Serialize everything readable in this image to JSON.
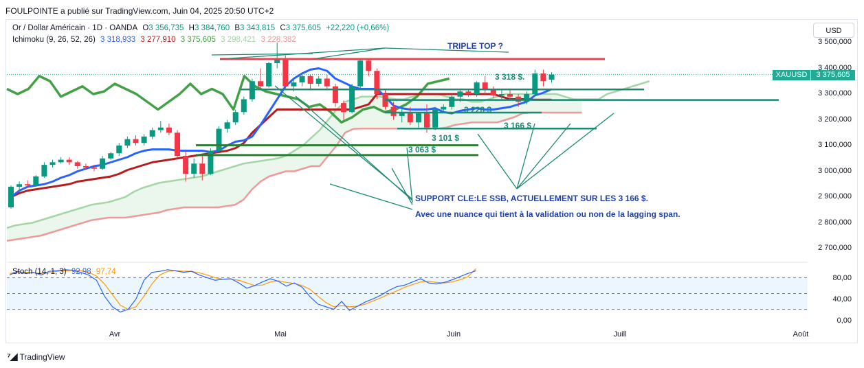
{
  "header": {
    "publisher_line": "FOULPOINTE a publié sur TradingView.com, Juin 04, 2025 20:50 UTC+2"
  },
  "instrument": {
    "name": "Or / Dollar Américain · 1D · OANDA",
    "o_label": "O",
    "o_value": "3 356,735",
    "h_label": "H",
    "h_value": "3 384,760",
    "b_label": "B",
    "b_value": "3 343,815",
    "c_label": "C",
    "c_value": "3 375,605",
    "change": "+22,220 (+0,66%)"
  },
  "ichimoku": {
    "label": "Ichimoku (9, 26, 52, 26)",
    "v1": "3 318,933",
    "v2": "3 277,910",
    "v3": "3 375,605",
    "v4": "3 298,421",
    "v5": "3 228,382",
    "colors": {
      "tenkan": "#2962ff",
      "kijun": "#b71c1c",
      "lagging": "#43a047",
      "span_a": "#a5d6a7",
      "span_b": "#ef9a9a"
    }
  },
  "stoch": {
    "label": "Stoch (14, 1, 3)",
    "k": "92,98",
    "d": "97,74",
    "levels": [
      "80,00",
      "40,00",
      "0,00"
    ]
  },
  "currency_button": "USD",
  "price_tag": {
    "symbol": "XAUUSD",
    "price": "3 375,605"
  },
  "annotations": {
    "triple_top": "TRIPLE TOP ?",
    "l3318": "3 318 $.",
    "l3228": "3 228 $",
    "l3166": "3 166 $",
    "l3101": "3 101 $",
    "l3063": "3 063 $",
    "support1": "SUPPORT CLE:LE SSB, ACTUELLEMENT SUR LES 3 166 $.",
    "support2": "Avec une nuance qui tient à la validation ou non de la lagging span."
  },
  "footer": {
    "brand": "TradingView"
  },
  "chart_data": {
    "type": "candlestick",
    "x_ticks": [
      "Avr",
      "Mai",
      "Juin",
      "Juill",
      "Août"
    ],
    "y_ticks": [
      "3 500,000",
      "3 400,000",
      "3 300,000",
      "3 200,000",
      "3 100,000",
      "3 000,000",
      "2 900,000",
      "2 800,000",
      "2 700,000"
    ],
    "y_values": [
      3500,
      3400,
      3300,
      3200,
      3100,
      3000,
      2900,
      2800,
      2700
    ],
    "ylim": [
      2650,
      3530
    ],
    "ohlc": [
      [
        2860,
        2945,
        2855,
        2940
      ],
      [
        2940,
        2960,
        2925,
        2950
      ],
      [
        2950,
        2965,
        2935,
        2945
      ],
      [
        2945,
        2985,
        2940,
        2980
      ],
      [
        2980,
        3035,
        2975,
        3025
      ],
      [
        3025,
        3045,
        3015,
        3035
      ],
      [
        3035,
        3055,
        3030,
        3045
      ],
      [
        3045,
        3055,
        3025,
        3035
      ],
      [
        3035,
        3040,
        3010,
        3020
      ],
      [
        3020,
        3030,
        3005,
        3015
      ],
      [
        3015,
        3025,
        3000,
        3010
      ],
      [
        3010,
        3060,
        3005,
        3050
      ],
      [
        3050,
        3075,
        3045,
        3070
      ],
      [
        3070,
        3110,
        3060,
        3100
      ],
      [
        3100,
        3135,
        3090,
        3125
      ],
      [
        3125,
        3140,
        3100,
        3110
      ],
      [
        3110,
        3145,
        3100,
        3135
      ],
      [
        3135,
        3170,
        3125,
        3160
      ],
      [
        3160,
        3195,
        3150,
        3170
      ],
      [
        3170,
        3185,
        3140,
        3150
      ],
      [
        3150,
        3160,
        3050,
        3060
      ],
      [
        3060,
        3080,
        2960,
        2990
      ],
      [
        2990,
        3050,
        2975,
        3030
      ],
      [
        3030,
        3060,
        2965,
        2990
      ],
      [
        2990,
        3090,
        2985,
        3080
      ],
      [
        3080,
        3175,
        3075,
        3165
      ],
      [
        3165,
        3200,
        3150,
        3190
      ],
      [
        3190,
        3240,
        3180,
        3230
      ],
      [
        3230,
        3290,
        3220,
        3280
      ],
      [
        3280,
        3360,
        3270,
        3350
      ],
      [
        3350,
        3400,
        3320,
        3330
      ],
      [
        3330,
        3425,
        3325,
        3420
      ],
      [
        3420,
        3500,
        3400,
        3440
      ],
      [
        3440,
        3450,
        3320,
        3330
      ],
      [
        3330,
        3360,
        3310,
        3345
      ],
      [
        3345,
        3380,
        3330,
        3370
      ],
      [
        3370,
        3375,
        3320,
        3340
      ],
      [
        3340,
        3370,
        3330,
        3360
      ],
      [
        3360,
        3375,
        3320,
        3330
      ],
      [
        3330,
        3340,
        3250,
        3265
      ],
      [
        3265,
        3275,
        3200,
        3230
      ],
      [
        3230,
        3340,
        3225,
        3330
      ],
      [
        3330,
        3440,
        3320,
        3430
      ],
      [
        3430,
        3435,
        3370,
        3390
      ],
      [
        3390,
        3400,
        3280,
        3300
      ],
      [
        3300,
        3320,
        3240,
        3250
      ],
      [
        3250,
        3270,
        3200,
        3215
      ],
      [
        3215,
        3245,
        3190,
        3230
      ],
      [
        3230,
        3250,
        3180,
        3190
      ],
      [
        3190,
        3230,
        3170,
        3225
      ],
      [
        3225,
        3260,
        3150,
        3170
      ],
      [
        3170,
        3250,
        3160,
        3240
      ],
      [
        3240,
        3260,
        3230,
        3250
      ],
      [
        3250,
        3300,
        3240,
        3290
      ],
      [
        3290,
        3320,
        3270,
        3310
      ],
      [
        3310,
        3320,
        3290,
        3300
      ],
      [
        3300,
        3350,
        3290,
        3345
      ],
      [
        3345,
        3370,
        3300,
        3315
      ],
      [
        3315,
        3330,
        3285,
        3295
      ],
      [
        3295,
        3320,
        3280,
        3300
      ],
      [
        3300,
        3320,
        3280,
        3290
      ],
      [
        3290,
        3300,
        3250,
        3270
      ],
      [
        3270,
        3310,
        3260,
        3300
      ],
      [
        3300,
        3395,
        3290,
        3380
      ],
      [
        3380,
        3395,
        3330,
        3350
      ],
      [
        3356,
        3385,
        3344,
        3376
      ]
    ],
    "tenkan": [
      2900,
      2925,
      2940,
      2945,
      2950,
      2960,
      2975,
      2985,
      3000,
      3010,
      3020,
      3025,
      3035,
      3045,
      3055,
      3070,
      3080,
      3085,
      3085,
      3085,
      3080,
      3080,
      3080,
      3080,
      3075,
      3080,
      3100,
      3115,
      3120,
      3135,
      3180,
      3230,
      3280,
      3330,
      3360,
      3380,
      3395,
      3400,
      3390,
      3360,
      3345,
      3330,
      3320,
      3320,
      3320,
      3290,
      3255,
      3245,
      3240,
      3240,
      3240,
      3245,
      3230,
      3225,
      3235,
      3240,
      3245,
      3240,
      3240,
      3245,
      3250,
      3260,
      3270,
      3295,
      3305,
      3319
    ],
    "kijun": [
      2900,
      2915,
      2925,
      2930,
      2935,
      2940,
      2945,
      2950,
      2960,
      2965,
      2970,
      2975,
      2980,
      2990,
      3005,
      3015,
      3025,
      3035,
      3040,
      3045,
      3050,
      3055,
      3060,
      3065,
      3070,
      3075,
      3080,
      3090,
      3110,
      3150,
      3180,
      3210,
      3240,
      3240,
      3240,
      3240,
      3240,
      3240,
      3240,
      3240,
      3240,
      3240,
      3250,
      3260,
      3300,
      3300,
      3300,
      3300,
      3300,
      3300,
      3300,
      3300,
      3300,
      3300,
      3300,
      3300,
      3300,
      3300,
      3300,
      3290,
      3280,
      3280,
      3280,
      3278,
      3278,
      3278
    ],
    "lagging": [
      3320,
      3300,
      3320,
      3370,
      3350,
      3290,
      3310,
      3330,
      3300,
      3310,
      3340,
      3320,
      3300,
      3270,
      3240,
      3270,
      3300,
      3340,
      3300,
      3320,
      3300,
      3240,
      3370,
      3330,
      3310,
      3300,
      3290,
      3280,
      3250,
      3260,
      3230,
      3190,
      3210,
      3240,
      3250,
      3230,
      3240,
      3260,
      3290,
      3340,
      3350,
      3360
    ],
    "lagging_offset": 0,
    "span_a": [
      2780,
      2790,
      2795,
      2800,
      2810,
      2820,
      2830,
      2840,
      2850,
      2860,
      2870,
      2875,
      2880,
      2890,
      2900,
      2920,
      2935,
      2945,
      2955,
      2960,
      2965,
      2970,
      2975,
      2980,
      2990,
      3000,
      3010,
      3020,
      3030,
      3035,
      3040,
      3045,
      3050,
      3060,
      3080,
      3100,
      3130,
      3160,
      3200,
      3240,
      3270,
      3280,
      3290,
      3290,
      3290,
      3285,
      3280,
      3280,
      3290,
      3300,
      3300,
      3300,
      3290,
      3280,
      3280,
      3270,
      3270,
      3280,
      3290,
      3300,
      3300,
      3300,
      3300,
      3300,
      3300,
      3300,
      3290,
      3280,
      3280,
      3280,
      3280,
      3300,
      3310,
      3320,
      3330,
      3340,
      3350
    ],
    "span_b": [
      2730,
      2735,
      2740,
      2745,
      2750,
      2760,
      2770,
      2780,
      2790,
      2800,
      2810,
      2815,
      2820,
      2820,
      2820,
      2825,
      2830,
      2835,
      2840,
      2850,
      2855,
      2860,
      2860,
      2860,
      2860,
      2860,
      2865,
      2870,
      2890,
      2930,
      2960,
      2980,
      2990,
      3000,
      3000,
      3010,
      3020,
      3020,
      3060,
      3100,
      3150,
      3165,
      3166,
      3166,
      3166,
      3166,
      3166,
      3166,
      3166,
      3166,
      3166,
      3166,
      3170,
      3180,
      3185,
      3190,
      3190,
      3190,
      3190,
      3200,
      3210,
      3225,
      3228,
      3228,
      3228,
      3228,
      3228,
      3228,
      3228
    ],
    "stoch_k": [
      85,
      92,
      88,
      90,
      85,
      92,
      93,
      95,
      94,
      90,
      85,
      75,
      45,
      25,
      15,
      20,
      40,
      75,
      90,
      92,
      95,
      93,
      90,
      92,
      85,
      80,
      75,
      77,
      78,
      70,
      60,
      65,
      72,
      78,
      73,
      64,
      70,
      62,
      44,
      30,
      25,
      20,
      35,
      18,
      26,
      34,
      40,
      47,
      56,
      63,
      66,
      72,
      78,
      70,
      68,
      71,
      76,
      82,
      88,
      93
    ],
    "stoch_d": [
      88,
      90,
      90,
      89,
      88,
      89,
      92,
      93,
      94,
      93,
      90,
      83,
      68,
      48,
      28,
      20,
      25,
      45,
      68,
      85,
      92,
      93,
      92,
      92,
      89,
      85,
      80,
      77,
      77,
      75,
      70,
      65,
      66,
      72,
      74,
      71,
      69,
      65,
      58,
      45,
      33,
      25,
      27,
      25,
      26,
      30,
      36,
      42,
      49,
      55,
      62,
      67,
      72,
      73,
      71,
      70,
      72,
      76,
      82,
      97
    ]
  }
}
